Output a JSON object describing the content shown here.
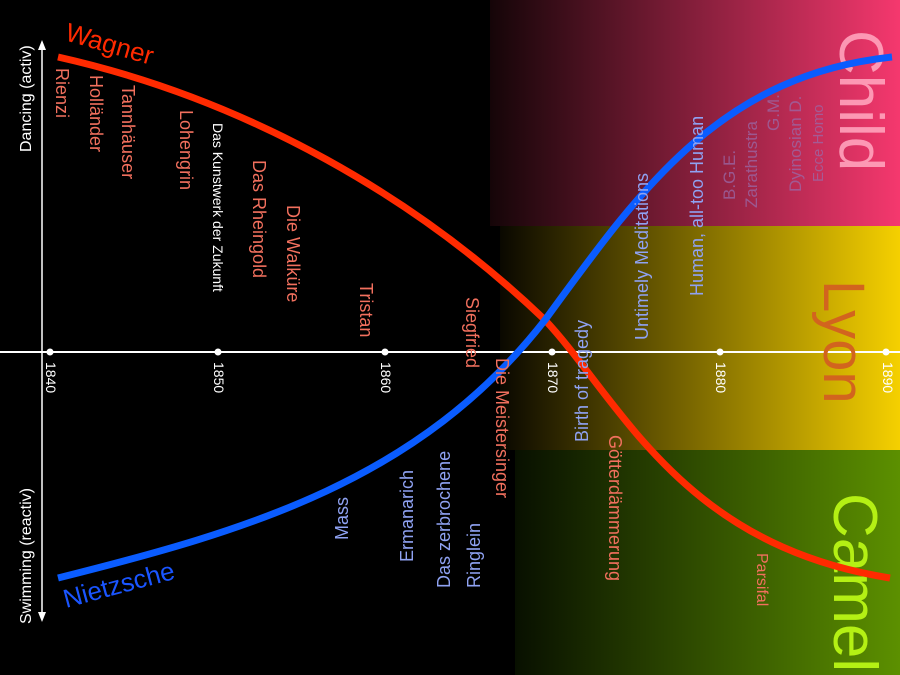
{
  "axes": {
    "up_label": "Dancing (activ)",
    "down_label": "Swimming (reactiv)",
    "years": [
      "1840",
      "1850",
      "1860",
      "1870",
      "1880",
      "1890"
    ]
  },
  "phases": {
    "child": {
      "label": "Child",
      "color": "#f5386e"
    },
    "lyon": {
      "label": "Lyon",
      "color": "#f5d000"
    },
    "camel": {
      "label": "Camel",
      "color": "#5c9000"
    }
  },
  "series": {
    "wagner": {
      "name": "Wagner",
      "color": "#ff2a00",
      "works": [
        "Rienzi",
        "Holländer",
        "Tannhäuser",
        "Lohengrin",
        "Das Kunstwerk der Zukunft",
        "Das Rheingold",
        "Die Walküre",
        "Tristan",
        "Siegfried",
        "Die Meistersinger",
        "Götterdämmerung",
        "Parsifal"
      ]
    },
    "nietzsche": {
      "name": "Nietzsche",
      "color": "#0a5cff",
      "works": [
        "Mass",
        "Ermanarich",
        "Das zerbrochene",
        "Ringlein",
        "Birth of tragedy",
        "Untimely Meditations",
        "Human, all-too Human",
        "B.G.E.",
        "Zarathustra",
        "G.M.",
        "Dyinosian D.",
        "Ecce Homo"
      ]
    }
  }
}
